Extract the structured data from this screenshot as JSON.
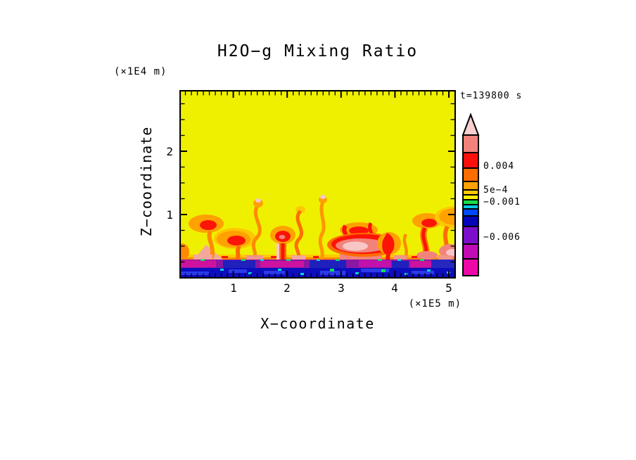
{
  "figure": {
    "background": "#FFFFFF"
  },
  "chart_data": {
    "type": "heatmap",
    "title": "H2O−g Mixing Ratio",
    "time_annotation": "t=139800 s",
    "xlabel": "X−coordinate",
    "x_unit": "(×1E5 m)",
    "x_ticks": [
      "1",
      "2",
      "3",
      "4",
      "5"
    ],
    "xlim": [
      0,
      5.13
    ],
    "ylabel": "Z−coordinate",
    "y_unit": "(×1E4 m)",
    "z_ticks": [
      "1",
      "2"
    ],
    "zlim": [
      0,
      2.98
    ],
    "grid": false,
    "tick_style": "inward, minor ticks every 0.1 (x) and 0.25 (z)",
    "field_background": "#EFF000",
    "field_summary": {
      "upper_region": "uniform yellow field over most of the domain above z ≈ 0.9 (×1E4 m)",
      "plume_region": "orange/red convective plumes with salmon and pale-pink cores rising from near the surface between z ≈ 0 and 0.9 (×1E4 m)",
      "surface_layers": "thin stratified floor: purple/magenta band over a dark-blue band speckled with bright blue, cyan and green"
    },
    "colorbar": {
      "position": "right",
      "orientation": "vertical",
      "arrow_color": "#F9CFCF",
      "colors": [
        "#F2837B",
        "#FB100C",
        "#FF6D01",
        "#FFA101",
        "#FFC801",
        "#FCEE00",
        "#1ADB4A",
        "#00C8E8",
        "#0048FF",
        "#0404B8",
        "#7C10CA",
        "#C10DB5",
        "#EC09A8"
      ],
      "labels": [
        "0.004",
        "5e−4",
        "−0.001",
        "−0.006"
      ]
    }
  }
}
